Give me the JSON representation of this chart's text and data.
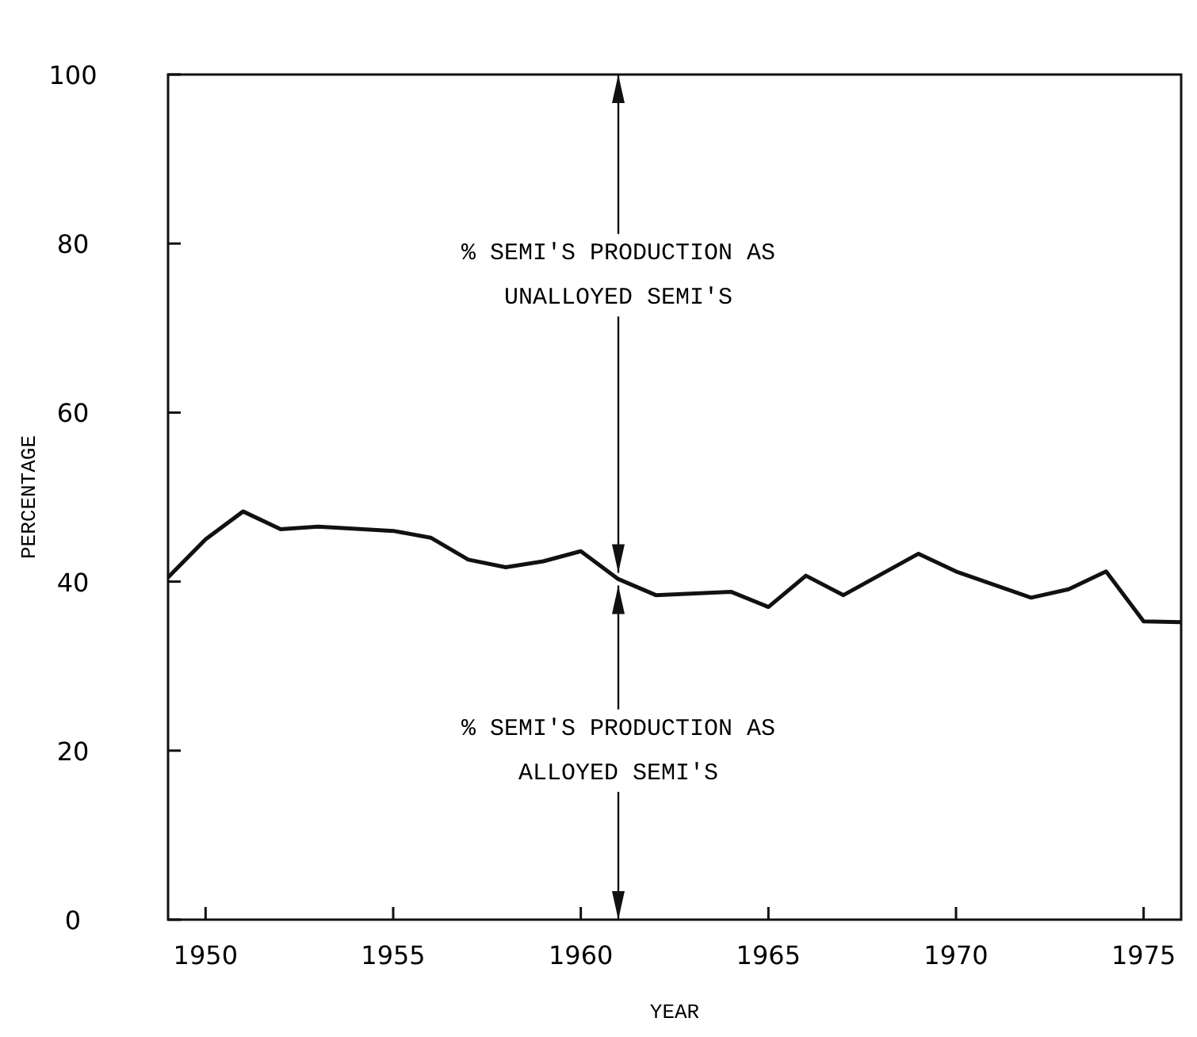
{
  "chart_data": {
    "type": "line",
    "xlabel": "YEAR",
    "ylabel": "PERCENTAGE",
    "x": [
      1949,
      1950,
      1951,
      1952,
      1953,
      1955,
      1956,
      1957,
      1958,
      1959,
      1960,
      1961,
      1962,
      1964,
      1965,
      1966,
      1967,
      1969,
      1970,
      1972,
      1973,
      1974,
      1975,
      1976
    ],
    "series": [
      {
        "color": "#111111",
        "values": [
          40.5,
          45,
          48.3,
          46.2,
          46.5,
          46,
          45.2,
          42.6,
          41.7,
          42.4,
          43.6,
          40.3,
          38.4,
          38.8,
          37,
          40.7,
          38.4,
          43.3,
          41.2,
          38.1,
          39.1,
          41.2,
          35.3,
          35.2
        ]
      }
    ],
    "xlim": [
      1949,
      1976
    ],
    "xticks": [
      1950,
      1955,
      1960,
      1965,
      1970,
      1975
    ],
    "ylim": [
      0,
      100
    ],
    "yticks": [
      0,
      20,
      40,
      60,
      80,
      100
    ],
    "grid": false,
    "marker": "none",
    "line_style": "solid",
    "annotations": [
      "% SEMI'S PRODUCTION AS UNALLOYED SEMI'S",
      "% SEMI'S PRODUCTION AS ALLOYED SEMI'S"
    ]
  }
}
